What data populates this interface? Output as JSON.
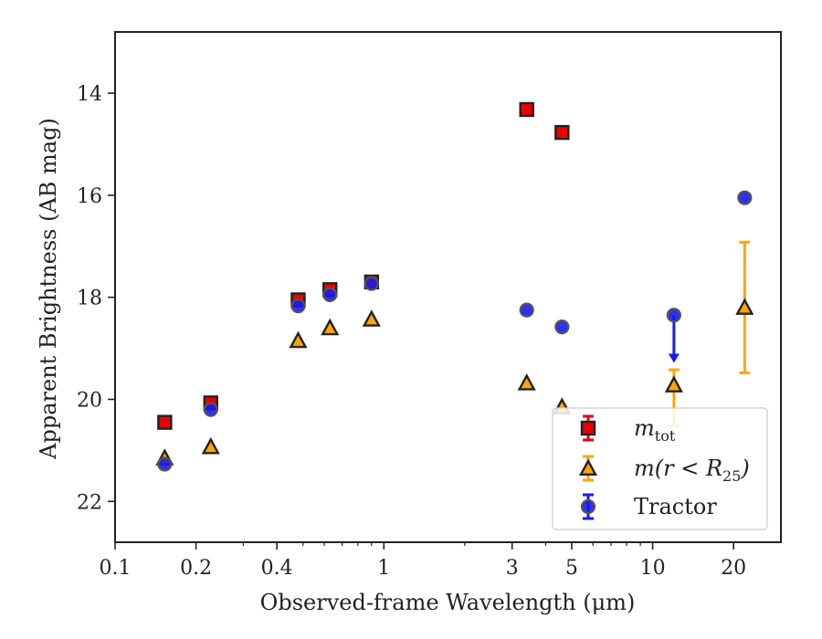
{
  "chart_data": {
    "type": "scatter",
    "xlabel": "Observed-frame Wavelength (μm)",
    "ylabel": "Apparent Brightness (AB mag)",
    "x_scale": "log",
    "xlim": [
      0.1,
      30
    ],
    "ylim": [
      22.8,
      12.8
    ],
    "y_inverted": true,
    "grid": false,
    "legend_position": "lower-right",
    "x_ticks": [
      {
        "value": 0.1,
        "label": "0.1"
      },
      {
        "value": 0.2,
        "label": "0.2"
      },
      {
        "value": 0.4,
        "label": "0.4"
      },
      {
        "value": 1,
        "label": "1"
      },
      {
        "value": 3,
        "label": "3"
      },
      {
        "value": 5,
        "label": "5"
      },
      {
        "value": 10,
        "label": "10"
      },
      {
        "value": 20,
        "label": "20"
      }
    ],
    "y_ticks": [
      {
        "value": 14,
        "label": "14"
      },
      {
        "value": 16,
        "label": "16"
      },
      {
        "value": 18,
        "label": "18"
      },
      {
        "value": 20,
        "label": "20"
      },
      {
        "value": 22,
        "label": "22"
      }
    ],
    "series": [
      {
        "name": "m_tot",
        "legend_main": "m",
        "legend_sub": "tot",
        "marker": "square",
        "color": "#ee0000",
        "points": [
          {
            "x": 0.153,
            "y": 20.45
          },
          {
            "x": 0.227,
            "y": 20.07
          },
          {
            "x": 0.48,
            "y": 18.05
          },
          {
            "x": 0.63,
            "y": 17.85
          },
          {
            "x": 0.9,
            "y": 17.7
          },
          {
            "x": 3.4,
            "y": 14.32
          },
          {
            "x": 4.6,
            "y": 14.77
          }
        ]
      },
      {
        "name": "m(r < R25)",
        "legend_main": "m(r < R",
        "legend_sub": "25",
        "legend_tail": ")",
        "marker": "triangle",
        "color": "#ffa500",
        "points": [
          {
            "x": 0.153,
            "y": 21.15
          },
          {
            "x": 0.227,
            "y": 20.93
          },
          {
            "x": 0.48,
            "y": 18.85
          },
          {
            "x": 0.63,
            "y": 18.6
          },
          {
            "x": 0.9,
            "y": 18.43
          },
          {
            "x": 3.4,
            "y": 19.68
          },
          {
            "x": 4.6,
            "y": 20.15
          },
          {
            "x": 12.0,
            "y": 19.72,
            "err_lo": 0.3,
            "err_hi": 0.8
          },
          {
            "x": 22.0,
            "y": 18.2,
            "err_lo": 1.28,
            "err_hi": 1.28
          }
        ]
      },
      {
        "name": "Tractor",
        "legend_main": "Tractor",
        "marker": "circle",
        "color": "#1a1aee",
        "points": [
          {
            "x": 0.153,
            "y": 21.27
          },
          {
            "x": 0.227,
            "y": 20.2
          },
          {
            "x": 0.48,
            "y": 18.17
          },
          {
            "x": 0.63,
            "y": 17.95
          },
          {
            "x": 0.9,
            "y": 17.73
          },
          {
            "x": 3.4,
            "y": 18.25
          },
          {
            "x": 4.6,
            "y": 18.58
          },
          {
            "x": 12.0,
            "y": 18.35,
            "upper_limit": true,
            "arrow_to": 19.25
          },
          {
            "x": 22.0,
            "y": 16.05
          }
        ]
      }
    ]
  }
}
